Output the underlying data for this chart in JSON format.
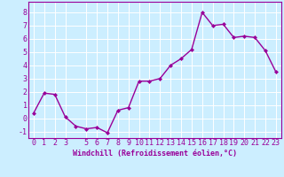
{
  "x": [
    0,
    1,
    2,
    3,
    4,
    5,
    6,
    7,
    8,
    9,
    10,
    11,
    12,
    13,
    14,
    15,
    16,
    17,
    18,
    19,
    20,
    21,
    22,
    23
  ],
  "y": [
    0.4,
    1.9,
    1.8,
    0.1,
    -0.6,
    -0.8,
    -0.7,
    -1.1,
    0.6,
    0.8,
    2.8,
    2.8,
    3.0,
    4.0,
    4.5,
    5.2,
    8.0,
    7.0,
    7.1,
    6.1,
    6.2,
    6.1,
    5.1,
    3.5
  ],
  "line_color": "#990099",
  "marker": "D",
  "marker_size": 2.0,
  "background_color": "#cceeff",
  "grid_color": "#ffffff",
  "xlabel": "Windchill (Refroidissement éolien,°C)",
  "xlabel_color": "#990099",
  "tick_color": "#990099",
  "ylim": [
    -1.5,
    8.8
  ],
  "xlim": [
    -0.5,
    23.5
  ],
  "yticks": [
    -1,
    0,
    1,
    2,
    3,
    4,
    5,
    6,
    7,
    8
  ],
  "xticks": [
    0,
    1,
    2,
    3,
    5,
    6,
    7,
    8,
    9,
    10,
    11,
    12,
    13,
    14,
    15,
    16,
    17,
    18,
    19,
    20,
    21,
    22,
    23
  ],
  "spine_color": "#990099",
  "linewidth": 1.0,
  "font_size": 6.0
}
